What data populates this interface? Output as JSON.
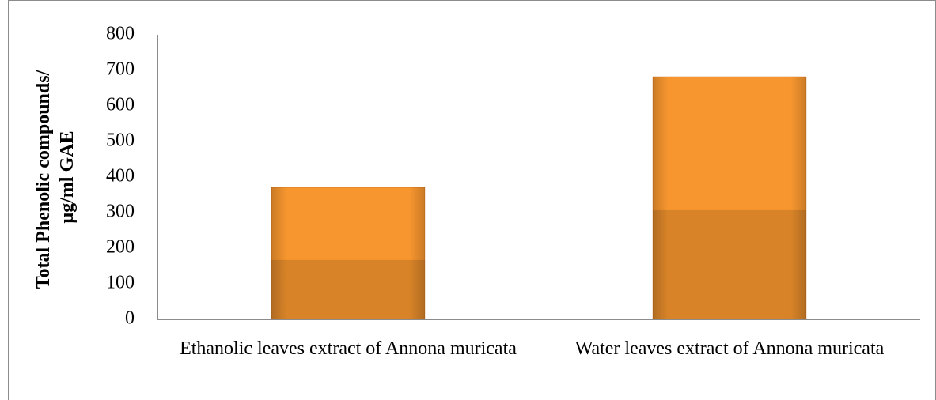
{
  "chart_data": {
    "type": "bar",
    "ylabel": [
      "Total Phenolic compounds/",
      "µg/ml GAE"
    ],
    "categories": [
      "Ethanolic leaves extract of Annona muricata",
      "Water leaves extract of Annona muricata"
    ],
    "values": [
      371,
      682
    ],
    "color": "#f7962f",
    "ylim": [
      0,
      800
    ],
    "yticks": [
      0,
      100,
      200,
      300,
      400,
      500,
      600,
      700,
      800
    ],
    "grid": false
  }
}
